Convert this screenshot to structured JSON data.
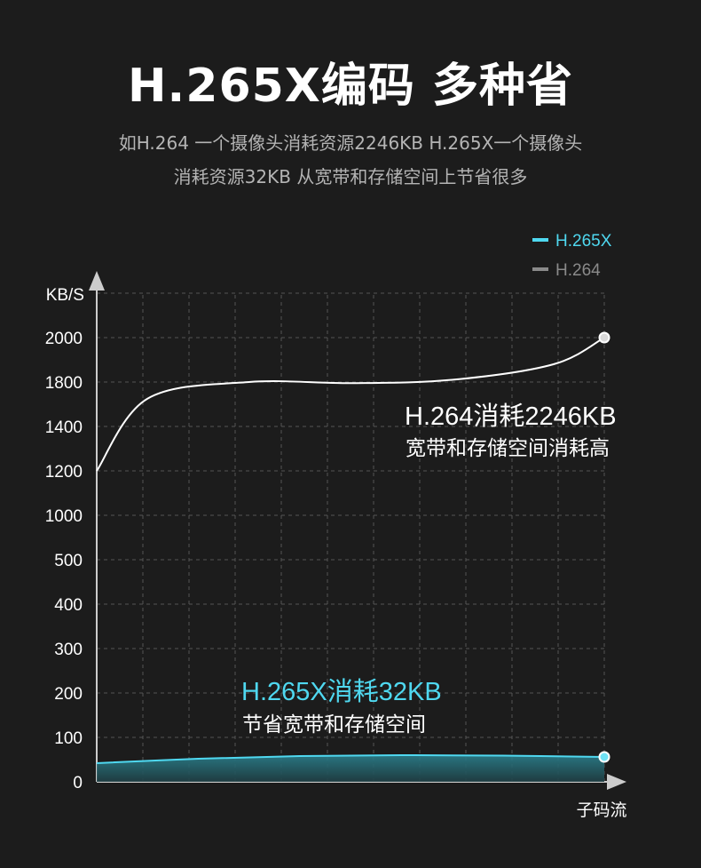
{
  "header": {
    "title": "H.265X编码 多种省",
    "subtitle_line1": "如H.264 一个摄像头消耗资源2246KB H.265X一个摄像头",
    "subtitle_line2": "消耗资源32KB 从宽带和存储空间上节省很多"
  },
  "colors": {
    "background": "#1c1c1c",
    "h265x": "#4fd8f0",
    "h264": "#ffffff",
    "h264_legend": "#8a8a8a",
    "grid": "#555555",
    "axis": "#cccccc"
  },
  "chart_data": {
    "type": "line",
    "ylabel": "KB/S",
    "xlabel": "子码流",
    "y_tick_labels": [
      "0",
      "100",
      "200",
      "300",
      "400",
      "500",
      "1000",
      "1200",
      "1400",
      "1800",
      "2000"
    ],
    "grid": true,
    "legend_position": "top-right",
    "legend": [
      {
        "name": "H.265X",
        "color": "#4fd8f0"
      },
      {
        "name": "H.264",
        "color": "#8a8a8a"
      }
    ],
    "series": [
      {
        "name": "H.264",
        "color": "#ffffff",
        "x": [
          0,
          0.1,
          0.3,
          0.5,
          0.7,
          0.9,
          1.0
        ],
        "values": [
          1200,
          1650,
          1800,
          1790,
          1810,
          1880,
          2000
        ]
      },
      {
        "name": "H.265X",
        "color": "#4fd8f0",
        "x": [
          0,
          0.2,
          0.4,
          0.6,
          0.8,
          1.0
        ],
        "values": [
          42,
          52,
          58,
          60,
          59,
          56
        ]
      }
    ],
    "annotations": [
      {
        "series": "H.264",
        "line1": "H.264消耗2246KB",
        "line2": "宽带和存储空间消耗高"
      },
      {
        "series": "H.265X",
        "line1": "H.265X消耗32KB",
        "line2": "节省宽带和存储空间"
      }
    ]
  }
}
